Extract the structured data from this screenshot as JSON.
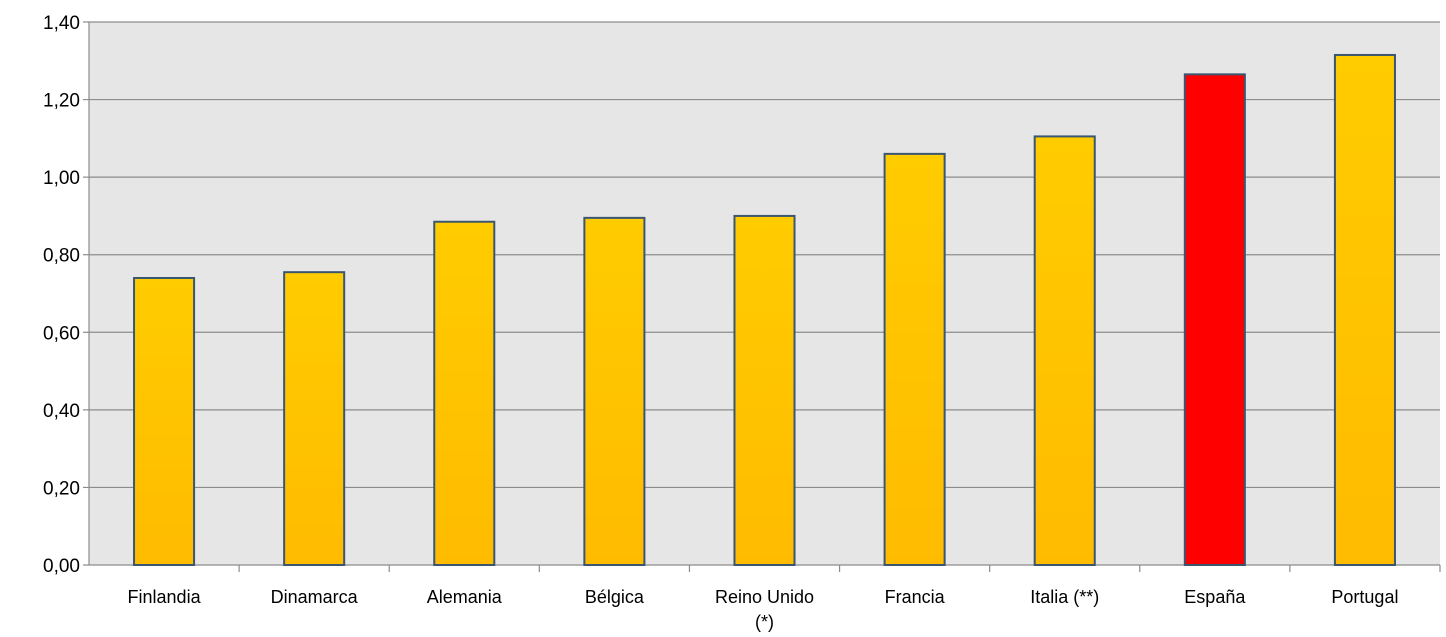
{
  "chart_data": {
    "type": "bar",
    "title": "",
    "xlabel": "",
    "ylabel": "",
    "categories": [
      "Finlandia",
      "Dinamarca",
      "Alemania",
      "Bélgica",
      "Reino Unido (*)",
      "Francia",
      "Italia (**)",
      "España",
      "Portugal"
    ],
    "category_lines": [
      [
        "Finlandia"
      ],
      [
        "Dinamarca"
      ],
      [
        "Alemania"
      ],
      [
        "Bélgica"
      ],
      [
        "Reino Unido",
        "(*)"
      ],
      [
        "Francia"
      ],
      [
        "Italia (**)"
      ],
      [
        "España"
      ],
      [
        "Portugal"
      ]
    ],
    "values": [
      0.74,
      0.755,
      0.885,
      0.895,
      0.9,
      1.06,
      1.105,
      1.265,
      1.315
    ],
    "highlight_category": "España",
    "ylim": [
      0,
      1.4
    ],
    "yticks": [
      0,
      0.2,
      0.4,
      0.6,
      0.8,
      1.0,
      1.2,
      1.4
    ],
    "ytick_labels": [
      "0,00",
      "0,20",
      "0,40",
      "0,60",
      "0,80",
      "1,00",
      "1,20",
      "1,40"
    ],
    "grid": true,
    "legend": "none"
  },
  "colors": {
    "bar_top": "#ffcc00",
    "bar_bottom": "#ffbb00",
    "highlight": "#ff0000",
    "bar_stroke": "#3b5670",
    "plot_background": "#e6e6e6",
    "gridline": "#8c8c8c",
    "axis": "#8c8c8c"
  }
}
